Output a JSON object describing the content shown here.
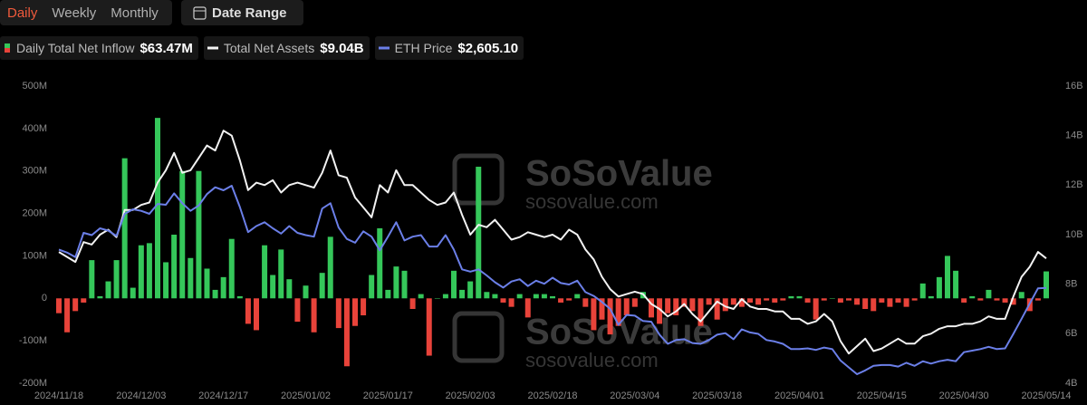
{
  "tabs": [
    "Daily",
    "Weekly",
    "Monthly"
  ],
  "active_tab": 0,
  "date_range": "Date Range",
  "watermark": {
    "brand": "SoSoValue",
    "url": "sosovalue.com"
  },
  "chart_data": {
    "type": "combo",
    "categories": [
      "2024/11/18",
      null,
      null,
      null,
      null,
      null,
      null,
      null,
      null,
      null,
      "2024/12/03",
      null,
      null,
      null,
      null,
      null,
      null,
      null,
      null,
      null,
      "2024/12/17",
      null,
      null,
      null,
      null,
      null,
      null,
      null,
      null,
      null,
      "2025/01/02",
      null,
      null,
      null,
      null,
      null,
      null,
      null,
      null,
      null,
      "2025/01/17",
      null,
      null,
      null,
      null,
      null,
      null,
      null,
      null,
      null,
      "2025/02/03",
      null,
      null,
      null,
      null,
      null,
      null,
      null,
      null,
      null,
      "2025/02/18",
      null,
      null,
      null,
      null,
      null,
      null,
      null,
      null,
      null,
      "2025/03/04",
      null,
      null,
      null,
      null,
      null,
      null,
      null,
      null,
      null,
      "2025/03/18",
      null,
      null,
      null,
      null,
      null,
      null,
      null,
      null,
      null,
      "2025/04/01",
      null,
      null,
      null,
      null,
      null,
      null,
      null,
      null,
      null,
      "2025/04/15",
      null,
      null,
      null,
      null,
      null,
      null,
      null,
      null,
      null,
      "2025/04/30",
      null,
      null,
      null,
      null,
      null,
      null,
      null,
      null,
      null,
      "2025/05/14"
    ],
    "series": [
      {
        "name": "Daily Total Net Inflow",
        "type": "bar",
        "latest_label": "$63.47M",
        "color": "#35c75a",
        "negative_color": "#e8433a",
        "values": [
          -35,
          -80,
          -30,
          -10,
          90,
          5,
          40,
          90,
          330,
          25,
          125,
          130,
          425,
          85,
          150,
          300,
          95,
          300,
          70,
          20,
          50,
          140,
          5,
          -60,
          -75,
          125,
          55,
          115,
          45,
          -55,
          30,
          -80,
          60,
          145,
          -70,
          -160,
          -65,
          -40,
          55,
          165,
          20,
          75,
          65,
          -25,
          10,
          -135,
          0,
          10,
          65,
          20,
          40,
          310,
          15,
          10,
          -10,
          -20,
          10,
          -45,
          10,
          10,
          5,
          -10,
          -5,
          10,
          -20,
          -75,
          -50,
          -85,
          -65,
          -40,
          -20,
          15,
          -45,
          -60,
          -35,
          -40,
          -20,
          -30,
          -65,
          -15,
          -50,
          -30,
          -15,
          -20,
          -10,
          -15,
          -5,
          -10,
          -5,
          5,
          5,
          -10,
          -50,
          -5,
          0,
          -10,
          -5,
          -15,
          -25,
          -30,
          -10,
          -20,
          -10,
          -20,
          -5,
          35,
          5,
          50,
          100,
          65,
          -10,
          5,
          -5,
          20,
          -5,
          -10,
          -15,
          15,
          -30,
          -5,
          63.47
        ]
      },
      {
        "name": "Total Net Assets",
        "type": "line",
        "axis": "y2",
        "latest_label": "$9.04B",
        "color": "#f2f2f2",
        "values": [
          9.3,
          9.1,
          8.9,
          9.7,
          9.6,
          10.0,
          10.2,
          9.9,
          11.0,
          11.0,
          11.2,
          11.3,
          12.1,
          12.6,
          13.3,
          12.5,
          12.6,
          13.1,
          13.6,
          13.4,
          14.2,
          14.0,
          13.0,
          11.8,
          12.1,
          12.0,
          12.2,
          11.7,
          12.0,
          12.1,
          12.0,
          11.9,
          12.5,
          13.4,
          12.4,
          12.3,
          11.5,
          11.1,
          10.7,
          12.0,
          11.7,
          12.6,
          12.0,
          12.0,
          11.7,
          11.4,
          11.2,
          11.3,
          11.7,
          10.8,
          10.0,
          10.4,
          10.3,
          10.6,
          10.2,
          9.8,
          9.9,
          10.1,
          10.0,
          9.9,
          10.0,
          9.8,
          10.2,
          10.0,
          9.4,
          9.0,
          8.3,
          7.8,
          7.5,
          7.6,
          7.7,
          7.6,
          7.2,
          7.0,
          6.7,
          6.9,
          7.2,
          6.8,
          6.5,
          6.9,
          7.3,
          7.1,
          7.0,
          7.4,
          7.1,
          7.0,
          7.0,
          6.9,
          6.9,
          6.6,
          6.6,
          6.4,
          6.5,
          6.8,
          6.5,
          5.7,
          5.2,
          5.5,
          5.8,
          5.3,
          5.4,
          5.6,
          5.8,
          5.6,
          5.6,
          5.9,
          6.0,
          6.2,
          6.3,
          6.3,
          6.4,
          6.4,
          6.5,
          6.7,
          6.6,
          6.6,
          7.5,
          8.3,
          8.7,
          9.3,
          9.04
        ]
      },
      {
        "name": "ETH Price",
        "type": "line",
        "axis": "hidden",
        "latest_label": "$2,605.10",
        "color": "#6b7fe8",
        "values": [
          3110,
          3070,
          3010,
          3330,
          3300,
          3390,
          3360,
          3290,
          3580,
          3640,
          3620,
          3580,
          3710,
          3700,
          3850,
          3720,
          3620,
          3690,
          3840,
          3930,
          3890,
          3950,
          3670,
          3340,
          3420,
          3470,
          3390,
          3320,
          3420,
          3330,
          3300,
          3280,
          3650,
          3720,
          3400,
          3250,
          3200,
          3350,
          3280,
          3100,
          3280,
          3470,
          3230,
          3280,
          3300,
          3150,
          3150,
          3300,
          3110,
          2850,
          2820,
          2850,
          2770,
          2680,
          2610,
          2690,
          2720,
          2630,
          2700,
          2660,
          2740,
          2670,
          2650,
          2700,
          2550,
          2500,
          2420,
          2330,
          2120,
          2250,
          2240,
          2170,
          2160,
          1990,
          1870,
          1920,
          1930,
          1880,
          1870,
          1920,
          1990,
          2010,
          1930,
          2060,
          2020,
          2000,
          1920,
          1900,
          1870,
          1800,
          1800,
          1810,
          1790,
          1820,
          1800,
          1650,
          1560,
          1470,
          1520,
          1580,
          1590,
          1590,
          1570,
          1620,
          1580,
          1640,
          1610,
          1640,
          1660,
          1640,
          1760,
          1780,
          1800,
          1830,
          1800,
          1810,
          2000,
          2200,
          2400,
          2600,
          2605.1
        ]
      }
    ],
    "ylim": [
      -200,
      500
    ],
    "yticks": [
      {
        "value": -200,
        "label": "-200M"
      },
      {
        "value": -100,
        "label": "-100M"
      },
      0,
      {
        "value": 100,
        "label": "100M"
      },
      {
        "value": 200,
        "label": "200M"
      },
      {
        "value": 300,
        "label": "300M"
      },
      {
        "value": 400,
        "label": "400M"
      },
      {
        "value": 500,
        "label": "500M"
      }
    ],
    "y2lim": [
      4,
      16
    ],
    "y2ticks": [
      {
        "value": 4,
        "label": "4B"
      },
      {
        "value": 6,
        "label": "6B"
      },
      {
        "value": 8,
        "label": "8B"
      },
      {
        "value": 10,
        "label": "10B"
      },
      {
        "value": 12,
        "label": "12B"
      },
      {
        "value": 14,
        "label": "14B"
      },
      {
        "value": 16,
        "label": "16B"
      }
    ],
    "grid": false
  }
}
